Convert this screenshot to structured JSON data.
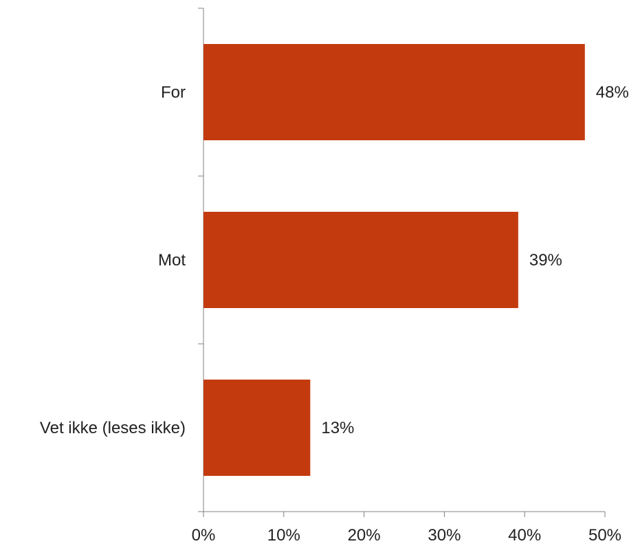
{
  "chart_data": {
    "type": "bar",
    "orientation": "horizontal",
    "categories": [
      "For",
      "Mot",
      "Vet ikke (leses ikke)"
    ],
    "values": [
      47.5,
      39.2,
      13.3
    ],
    "data_labels": [
      "48%",
      "39%",
      "13%"
    ],
    "x_ticks": [
      "0%",
      "10%",
      "20%",
      "30%",
      "40%",
      "50%"
    ],
    "xlim": [
      0,
      50
    ],
    "grid": false,
    "legend": "none",
    "bar_color": "#c43a0f"
  }
}
